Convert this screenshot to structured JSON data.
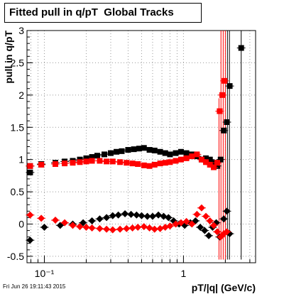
{
  "footer": {
    "timestamp": "Fri Jun 26 19:11:43 2015"
  },
  "chart_data": {
    "type": "scatter",
    "title": "Fitted pull in q/pT  Global Tracks",
    "xlabel": "pT/|q| (GeV/c)",
    "ylabel": "pull in q/pT",
    "xscale": "log",
    "xlim": [
      0.075,
      3.3
    ],
    "ylim": [
      -0.6,
      3.0
    ],
    "x_ticks": [
      0.1,
      1
    ],
    "x_tick_labels": [
      "10⁻¹",
      "1"
    ],
    "y_ticks": [
      -0.5,
      0,
      0.5,
      1,
      1.5,
      2,
      2.5,
      3
    ],
    "y_tick_labels": [
      "-0.5",
      "0",
      "0.5",
      "1",
      "1.5",
      "2",
      "2.5",
      "3"
    ],
    "grid": true,
    "series": [
      {
        "color": "#000000",
        "marker": "square",
        "points": [
          [
            0.079,
            0.8
          ],
          [
            0.079,
            0.9
          ],
          [
            0.095,
            0.93
          ],
          [
            0.12,
            0.95
          ],
          [
            0.14,
            0.97
          ],
          [
            0.16,
            0.98
          ],
          [
            0.18,
            1.0
          ],
          [
            0.2,
            1.02
          ],
          [
            0.22,
            1.04
          ],
          [
            0.24,
            1.06
          ],
          [
            0.27,
            1.08
          ],
          [
            0.3,
            1.1
          ],
          [
            0.33,
            1.12
          ],
          [
            0.36,
            1.13
          ],
          [
            0.4,
            1.15
          ],
          [
            0.44,
            1.16
          ],
          [
            0.48,
            1.17
          ],
          [
            0.52,
            1.18
          ],
          [
            0.57,
            1.15
          ],
          [
            0.62,
            1.14
          ],
          [
            0.68,
            1.12
          ],
          [
            0.74,
            1.1
          ],
          [
            0.8,
            1.08
          ],
          [
            0.88,
            1.1
          ],
          [
            0.96,
            1.12
          ],
          [
            1.05,
            1.1
          ],
          [
            1.15,
            1.08
          ],
          [
            1.25,
            1.05
          ],
          [
            1.35,
            1.0
          ],
          [
            1.45,
            1.02
          ],
          [
            1.55,
            1.0
          ],
          [
            1.65,
            0.95
          ],
          [
            1.75,
            0.9
          ],
          [
            1.85,
            1.0
          ],
          [
            1.95,
            1.45
          ],
          [
            2.05,
            1.58
          ],
          [
            2.15,
            2.14
          ],
          [
            2.6,
            2.73
          ]
        ]
      },
      {
        "color": "#ff0000",
        "marker": "square",
        "points": [
          [
            0.079,
            0.9
          ],
          [
            0.095,
            0.92
          ],
          [
            0.12,
            0.93
          ],
          [
            0.14,
            0.94
          ],
          [
            0.16,
            0.95
          ],
          [
            0.18,
            0.96
          ],
          [
            0.2,
            0.97
          ],
          [
            0.22,
            0.98
          ],
          [
            0.25,
            0.98
          ],
          [
            0.28,
            0.97
          ],
          [
            0.31,
            0.97
          ],
          [
            0.35,
            0.96
          ],
          [
            0.39,
            0.95
          ],
          [
            0.43,
            0.94
          ],
          [
            0.47,
            0.93
          ],
          [
            0.52,
            0.91
          ],
          [
            0.57,
            0.9
          ],
          [
            0.62,
            0.92
          ],
          [
            0.68,
            0.94
          ],
          [
            0.74,
            0.95
          ],
          [
            0.8,
            0.96
          ],
          [
            0.88,
            0.98
          ],
          [
            0.96,
            1.0
          ],
          [
            1.05,
            1.02
          ],
          [
            1.15,
            1.05
          ],
          [
            1.25,
            1.08
          ],
          [
            1.35,
            1.0
          ],
          [
            1.45,
            0.96
          ],
          [
            1.55,
            0.92
          ],
          [
            1.65,
            0.88
          ],
          [
            1.75,
            0.95
          ],
          [
            1.82,
            1.75
          ],
          [
            1.9,
            2.0
          ],
          [
            1.97,
            2.22
          ]
        ]
      },
      {
        "color": "#000000",
        "marker": "diamond",
        "points": [
          [
            0.079,
            -0.25
          ],
          [
            0.1,
            -0.05
          ],
          [
            0.13,
            -0.02
          ],
          [
            0.16,
            0.0
          ],
          [
            0.19,
            0.02
          ],
          [
            0.22,
            0.05
          ],
          [
            0.25,
            0.08
          ],
          [
            0.28,
            0.1
          ],
          [
            0.31,
            0.13
          ],
          [
            0.34,
            0.14
          ],
          [
            0.38,
            0.16
          ],
          [
            0.42,
            0.15
          ],
          [
            0.46,
            0.14
          ],
          [
            0.5,
            0.13
          ],
          [
            0.55,
            0.12
          ],
          [
            0.6,
            0.12
          ],
          [
            0.66,
            0.14
          ],
          [
            0.72,
            0.12
          ],
          [
            0.78,
            0.1
          ],
          [
            0.85,
            0.05
          ],
          [
            0.93,
            0.0
          ],
          [
            1.02,
            -0.02
          ],
          [
            1.12,
            0.02
          ],
          [
            1.22,
            0.05
          ],
          [
            1.32,
            -0.05
          ],
          [
            1.42,
            -0.1
          ],
          [
            1.52,
            -0.18
          ],
          [
            1.62,
            -0.05
          ],
          [
            1.72,
            0.02
          ],
          [
            1.82,
            -0.2
          ],
          [
            1.95,
            0.08
          ],
          [
            2.05,
            0.2
          ],
          [
            2.15,
            -0.15
          ]
        ]
      },
      {
        "color": "#ff0000",
        "marker": "diamond",
        "points": [
          [
            0.079,
            0.14
          ],
          [
            0.095,
            0.09
          ],
          [
            0.12,
            0.06
          ],
          [
            0.14,
            0.02
          ],
          [
            0.16,
            -0.02
          ],
          [
            0.18,
            -0.04
          ],
          [
            0.2,
            -0.05
          ],
          [
            0.22,
            -0.06
          ],
          [
            0.25,
            -0.07
          ],
          [
            0.28,
            -0.08
          ],
          [
            0.31,
            -0.09
          ],
          [
            0.35,
            -0.08
          ],
          [
            0.39,
            -0.07
          ],
          [
            0.43,
            -0.06
          ],
          [
            0.47,
            -0.05
          ],
          [
            0.52,
            -0.04
          ],
          [
            0.57,
            -0.06
          ],
          [
            0.62,
            -0.08
          ],
          [
            0.68,
            -0.07
          ],
          [
            0.74,
            -0.05
          ],
          [
            0.8,
            -0.03
          ],
          [
            0.88,
            0.0
          ],
          [
            0.96,
            0.02
          ],
          [
            1.05,
            0.04
          ],
          [
            1.15,
            0.0
          ],
          [
            1.25,
            0.15
          ],
          [
            1.35,
            0.25
          ],
          [
            1.45,
            0.12
          ],
          [
            1.55,
            0.05
          ],
          [
            1.65,
            -0.02
          ],
          [
            1.75,
            -0.12
          ],
          [
            1.85,
            -0.2
          ],
          [
            1.95,
            -0.15
          ],
          [
            2.05,
            -0.12
          ]
        ]
      }
    ],
    "error_bars": [
      {
        "x": 1.8,
        "low": -0.55,
        "high": 1.95,
        "color": "#ff0000"
      },
      {
        "x": 1.86,
        "low": -0.55,
        "high": 3.0,
        "color": "#ff0000"
      },
      {
        "x": 1.93,
        "low": -0.55,
        "high": 3.0,
        "color": "#ff0000"
      },
      {
        "x": 2.0,
        "low": -0.55,
        "high": 3.0,
        "color": "#ff0000"
      },
      {
        "x": 2.07,
        "low": -0.55,
        "high": 3.0,
        "color": "#000000"
      },
      {
        "x": 2.14,
        "low": -0.55,
        "high": 3.0,
        "color": "#000000"
      },
      {
        "x": 2.6,
        "low": -0.55,
        "high": 3.0,
        "color": "#000000"
      }
    ]
  }
}
